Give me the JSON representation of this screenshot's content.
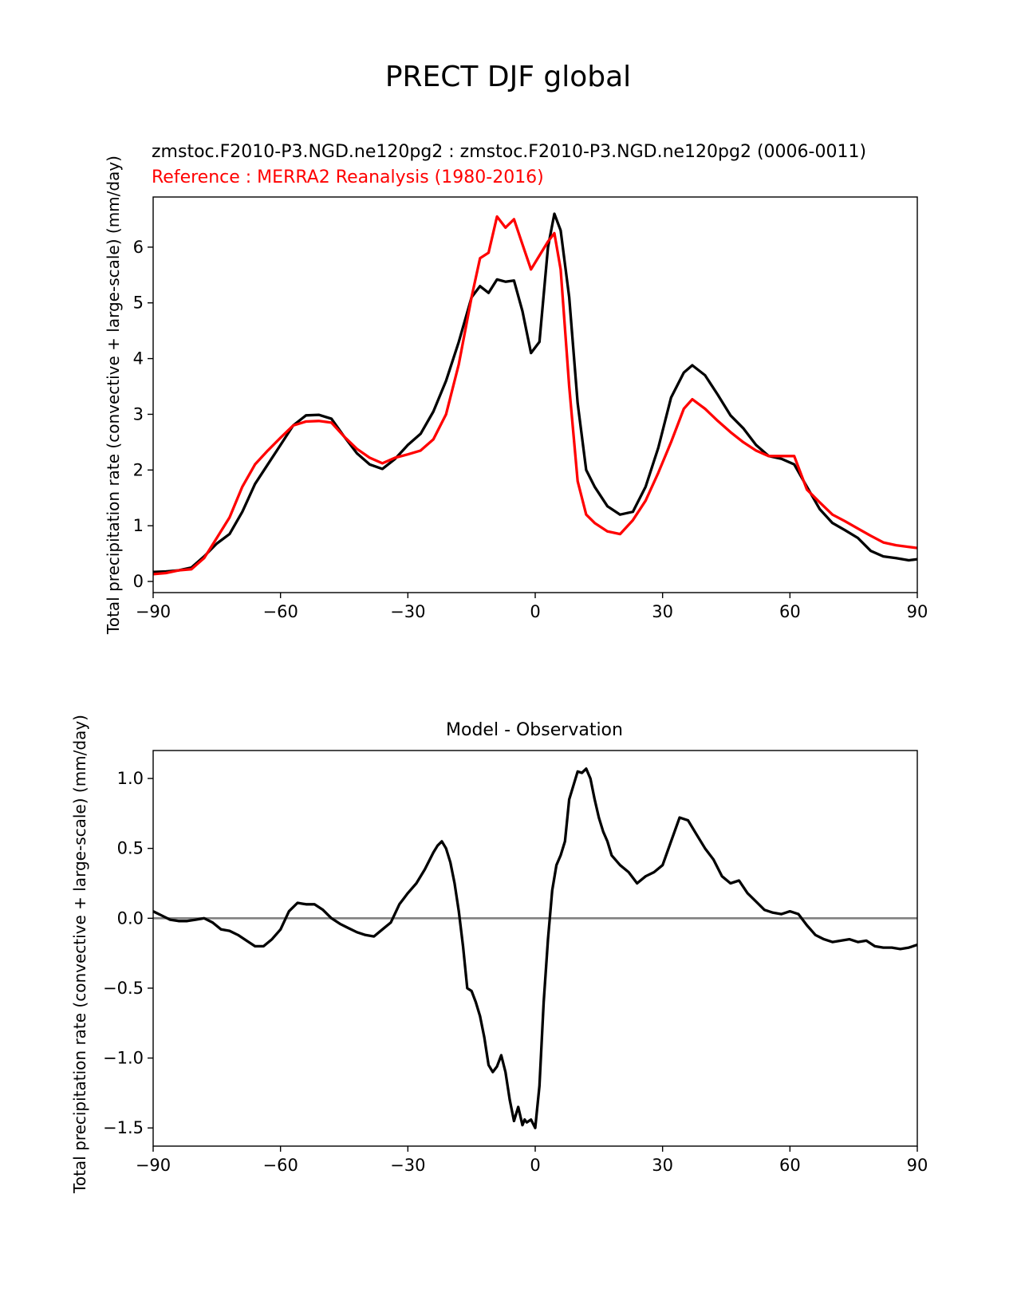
{
  "figure": {
    "title": "PRECT DJF global"
  },
  "chart_data": [
    {
      "type": "line",
      "subtitle_test": "zmstoc.F2010-P3.NGD.ne120pg2 : zmstoc.F2010-P3.NGD.ne120pg2 (0006-0011)",
      "subtitle_ref": "Reference : MERRA2 Reanalysis (1980-2016)",
      "xlabel": "",
      "ylabel": "Total precipitation rate (convective + large-scale) (mm/day)",
      "xlim": [
        -90,
        90
      ],
      "ylim": [
        -0.2,
        6.9
      ],
      "xticks": [
        -90,
        -60,
        -30,
        0,
        30,
        60,
        90
      ],
      "xtick_labels": [
        "−90",
        "−60",
        "−30",
        "0",
        "30",
        "60",
        "90"
      ],
      "yticks": [
        0,
        1,
        2,
        3,
        4,
        5,
        6
      ],
      "ytick_labels": [
        "0",
        "1",
        "2",
        "3",
        "4",
        "5",
        "6"
      ],
      "grid": false,
      "series": [
        {
          "name": "zmstoc.F2010-P3.NGD.ne120pg2",
          "color": "#000000",
          "x": [
            -90,
            -87,
            -84,
            -81,
            -78,
            -75,
            -72,
            -69,
            -66,
            -63,
            -60,
            -57,
            -54,
            -51,
            -48,
            -45,
            -42,
            -39,
            -36,
            -33,
            -30,
            -27,
            -24,
            -21,
            -18,
            -15,
            -13,
            -11,
            -9,
            -7,
            -5,
            -3,
            -1,
            1,
            3,
            4.5,
            6,
            8,
            10,
            12,
            14,
            17,
            20,
            23,
            26,
            29,
            32,
            35,
            37,
            40,
            43,
            46,
            49,
            52,
            55,
            58,
            61,
            64,
            67,
            70,
            73,
            76,
            79,
            82,
            85,
            88,
            90
          ],
          "y": [
            0.17,
            0.18,
            0.2,
            0.25,
            0.45,
            0.68,
            0.85,
            1.25,
            1.75,
            2.1,
            2.45,
            2.8,
            2.98,
            2.99,
            2.92,
            2.6,
            2.3,
            2.1,
            2.02,
            2.2,
            2.45,
            2.65,
            3.05,
            3.6,
            4.3,
            5.1,
            5.3,
            5.18,
            5.42,
            5.38,
            5.4,
            4.85,
            4.1,
            4.3,
            6.0,
            6.6,
            6.3,
            5.1,
            3.2,
            2.0,
            1.7,
            1.35,
            1.2,
            1.25,
            1.7,
            2.4,
            3.3,
            3.75,
            3.88,
            3.7,
            3.35,
            2.98,
            2.75,
            2.45,
            2.25,
            2.2,
            2.1,
            1.7,
            1.3,
            1.05,
            0.92,
            0.78,
            0.55,
            0.45,
            0.42,
            0.38,
            0.4
          ]
        },
        {
          "name": "MERRA2 Reanalysis",
          "color": "#ff0000",
          "x": [
            -90,
            -87,
            -84,
            -81,
            -78,
            -75,
            -72,
            -69,
            -66,
            -63,
            -60,
            -57,
            -54,
            -51,
            -48,
            -45,
            -42,
            -39,
            -36,
            -33,
            -30,
            -27,
            -24,
            -21,
            -18,
            -15,
            -13,
            -11,
            -9,
            -7,
            -5,
            -3,
            -1,
            1,
            3,
            4.5,
            6,
            8,
            10,
            12,
            14,
            17,
            20,
            23,
            26,
            29,
            32,
            35,
            37,
            40,
            43,
            46,
            49,
            52,
            55,
            58,
            61,
            64,
            67,
            70,
            73,
            76,
            79,
            82,
            85,
            88,
            90
          ],
          "y": [
            0.13,
            0.15,
            0.2,
            0.22,
            0.42,
            0.78,
            1.15,
            1.7,
            2.1,
            2.35,
            2.58,
            2.8,
            2.87,
            2.88,
            2.85,
            2.6,
            2.38,
            2.22,
            2.12,
            2.22,
            2.28,
            2.35,
            2.55,
            3.0,
            3.9,
            5.1,
            5.8,
            5.9,
            6.55,
            6.35,
            6.5,
            6.05,
            5.6,
            5.85,
            6.1,
            6.25,
            5.6,
            3.5,
            1.8,
            1.2,
            1.05,
            0.9,
            0.85,
            1.1,
            1.45,
            1.95,
            2.5,
            3.1,
            3.27,
            3.1,
            2.88,
            2.68,
            2.5,
            2.35,
            2.25,
            2.25,
            2.25,
            1.65,
            1.42,
            1.2,
            1.08,
            0.95,
            0.82,
            0.7,
            0.65,
            0.62,
            0.6
          ]
        }
      ]
    },
    {
      "type": "line",
      "title": "Model - Observation",
      "xlabel": "",
      "ylabel": "Total precipitation rate (convective + large-scale) (mm/day)",
      "xlim": [
        -90,
        90
      ],
      "ylim": [
        -1.63,
        1.2
      ],
      "xticks": [
        -90,
        -60,
        -30,
        0,
        30,
        60,
        90
      ],
      "xtick_labels": [
        "−90",
        "−60",
        "−30",
        "0",
        "30",
        "60",
        "90"
      ],
      "yticks": [
        -1.5,
        -1.0,
        -0.5,
        0.0,
        0.5,
        1.0
      ],
      "ytick_labels": [
        "−1.5",
        "−1.0",
        "−0.5",
        "0.0",
        "0.5",
        "1.0"
      ],
      "grid": false,
      "zero_line_color": "#808080",
      "series": [
        {
          "name": "Model - Observation",
          "color": "#000000",
          "x": [
            -90,
            -88,
            -86,
            -84,
            -82,
            -80,
            -78,
            -76,
            -74,
            -72,
            -70,
            -68,
            -66,
            -64,
            -62,
            -60,
            -58,
            -56,
            -54,
            -52,
            -50,
            -48,
            -46,
            -44,
            -42,
            -40,
            -38,
            -36,
            -34,
            -32,
            -30,
            -28,
            -26,
            -24,
            -23,
            -22,
            -21,
            -20,
            -19,
            -18,
            -17,
            -16,
            -15,
            -14,
            -13,
            -12,
            -11,
            -10,
            -9,
            -8,
            -7,
            -6,
            -5,
            -4,
            -3,
            -2.5,
            -2,
            -1,
            0,
            1,
            2,
            3,
            4,
            5,
            6,
            7,
            8,
            9,
            10,
            11,
            12,
            13,
            14,
            15,
            16,
            17,
            18,
            20,
            22,
            24,
            26,
            28,
            30,
            32,
            34,
            36,
            38,
            40,
            42,
            44,
            46,
            48,
            50,
            52,
            54,
            56,
            58,
            60,
            62,
            64,
            66,
            68,
            70,
            72,
            74,
            76,
            78,
            80,
            82,
            84,
            86,
            88,
            90
          ],
          "y": [
            0.05,
            0.02,
            -0.01,
            -0.02,
            -0.02,
            -0.01,
            0.0,
            -0.03,
            -0.08,
            -0.09,
            -0.12,
            -0.16,
            -0.2,
            -0.2,
            -0.15,
            -0.08,
            0.05,
            0.11,
            0.1,
            0.1,
            0.06,
            0.0,
            -0.04,
            -0.07,
            -0.1,
            -0.12,
            -0.13,
            -0.08,
            -0.03,
            0.1,
            0.18,
            0.25,
            0.35,
            0.47,
            0.52,
            0.55,
            0.5,
            0.4,
            0.25,
            0.05,
            -0.2,
            -0.5,
            -0.52,
            -0.6,
            -0.7,
            -0.85,
            -1.05,
            -1.1,
            -1.06,
            -0.98,
            -1.1,
            -1.3,
            -1.45,
            -1.35,
            -1.48,
            -1.44,
            -1.46,
            -1.44,
            -1.5,
            -1.2,
            -0.6,
            -0.15,
            0.2,
            0.38,
            0.45,
            0.55,
            0.85,
            0.95,
            1.05,
            1.04,
            1.07,
            1.0,
            0.85,
            0.72,
            0.62,
            0.55,
            0.45,
            0.38,
            0.33,
            0.25,
            0.3,
            0.33,
            0.38,
            0.55,
            0.72,
            0.7,
            0.6,
            0.5,
            0.42,
            0.3,
            0.25,
            0.27,
            0.18,
            0.12,
            0.06,
            0.04,
            0.03,
            0.05,
            0.03,
            -0.05,
            -0.12,
            -0.15,
            -0.17,
            -0.16,
            -0.15,
            -0.17,
            -0.16,
            -0.2,
            -0.21,
            -0.21,
            -0.22,
            -0.21,
            -0.19
          ]
        }
      ]
    }
  ]
}
